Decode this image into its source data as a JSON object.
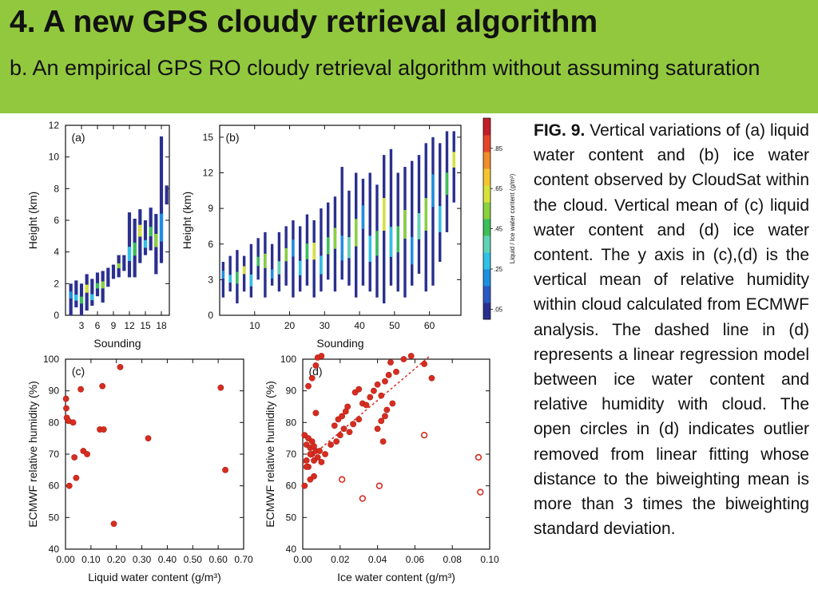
{
  "header": {
    "title": "4. A new GPS cloudy retrieval algorithm",
    "subtitle": "b. An empirical GPS RO cloudy retrieval algorithm without assuming saturation",
    "background": "#92c83e"
  },
  "caption": {
    "label": "FIG. 9.",
    "text": "Vertical variations of (a) liquid water content and (b) ice water content observed by CloudSat within the cloud. Vertical mean of (c) liquid water content and (d) ice water content. The y axis in (c),(d) is the vertical mean of relative humidity within cloud calculated from ECMWF analysis. The dashed line in (d) represents a linear regression model between ice water content and relative humidity with cloud. The open circles in (d) indicates outlier removed from linear fitting whose distance to the biweighting mean is more than 3 times the biweighting standard deviation."
  },
  "colors": {
    "scatter": "#d62d20",
    "bar": "#2a2f8f",
    "header": "#92c83e"
  },
  "colorbar": {
    "label": "Liquid / Ice water content (g/m³)",
    "tick_labels": [
      ".05",
      ".25",
      ".45",
      ".65",
      ".85"
    ],
    "tick_values": [
      0.05,
      0.25,
      0.45,
      0.65,
      0.85
    ],
    "range": [
      0,
      1
    ],
    "colors": [
      "#2a2f8f",
      "#2a59c4",
      "#1e8fe0",
      "#2fc1e6",
      "#5fd3b5",
      "#3cbf5a",
      "#8ad13e",
      "#d8e33a",
      "#f4c530",
      "#f08c2a",
      "#e4452a",
      "#c41e2a"
    ]
  },
  "chart_data": [
    {
      "panel": "(a)",
      "type": "heatmap",
      "xlabel": "Sounding",
      "ylabel": "Height (km)",
      "xlim": [
        0,
        19.5
      ],
      "ylim": [
        0,
        12
      ],
      "xticks": [
        3,
        6,
        9,
        12,
        15,
        18
      ],
      "yticks": [
        0,
        2,
        4,
        6,
        8,
        10,
        12
      ],
      "columns": [
        {
          "x": 1,
          "bottom": 0,
          "top": 2.0
        },
        {
          "x": 2,
          "bottom": 0.5,
          "top": 2.2
        },
        {
          "x": 3,
          "bottom": 0,
          "top": 2.0
        },
        {
          "x": 4,
          "bottom": 0.3,
          "top": 2.6
        },
        {
          "x": 5,
          "bottom": 0.6,
          "top": 2.3
        },
        {
          "x": 6,
          "bottom": 1.2,
          "top": 2.7
        },
        {
          "x": 7,
          "bottom": 0.8,
          "top": 2.8
        },
        {
          "x": 8,
          "bottom": 1.8,
          "top": 3.0
        },
        {
          "x": 9,
          "bottom": 2.3,
          "top": 3.2
        },
        {
          "x": 10,
          "bottom": 2.4,
          "top": 3.8
        },
        {
          "x": 11,
          "bottom": 2.8,
          "top": 3.8
        },
        {
          "x": 12,
          "bottom": 2.4,
          "top": 6.5
        },
        {
          "x": 13,
          "bottom": 2.4,
          "top": 6.1
        },
        {
          "x": 14,
          "bottom": 3.3,
          "top": 6.7
        },
        {
          "x": 15,
          "bottom": 3.8,
          "top": 6.0
        },
        {
          "x": 16,
          "bottom": 4.1,
          "top": 6.8
        },
        {
          "x": 17,
          "bottom": 2.6,
          "top": 6.4
        },
        {
          "x": 18,
          "bottom": 3.3,
          "top": 11.3
        },
        {
          "x": 19,
          "bottom": 7.0,
          "top": 8.2
        }
      ]
    },
    {
      "panel": "(b)",
      "type": "heatmap",
      "xlabel": "Sounding",
      "ylabel": "Height (km)",
      "xlim": [
        0,
        69
      ],
      "ylim": [
        0,
        16
      ],
      "xticks": [
        10,
        20,
        30,
        40,
        50,
        60
      ],
      "yticks": [
        0,
        3,
        6,
        9,
        12,
        15
      ],
      "columns": [
        {
          "x": 1,
          "bottom": 1.5,
          "top": 4.5
        },
        {
          "x": 3,
          "bottom": 2.0,
          "top": 5.0
        },
        {
          "x": 5,
          "bottom": 1.0,
          "top": 5.5
        },
        {
          "x": 7,
          "bottom": 2.0,
          "top": 5.0
        },
        {
          "x": 9,
          "bottom": 1.5,
          "top": 6.0
        },
        {
          "x": 11,
          "bottom": 3.0,
          "top": 6.5
        },
        {
          "x": 13,
          "bottom": 1.5,
          "top": 7.0
        },
        {
          "x": 15,
          "bottom": 2.5,
          "top": 6.0
        },
        {
          "x": 17,
          "bottom": 2.0,
          "top": 7.0
        },
        {
          "x": 19,
          "bottom": 2.5,
          "top": 7.5
        },
        {
          "x": 21,
          "bottom": 1.5,
          "top": 8.0
        },
        {
          "x": 23,
          "bottom": 2.0,
          "top": 7.5
        },
        {
          "x": 25,
          "bottom": 2.5,
          "top": 8.5
        },
        {
          "x": 27,
          "bottom": 1.5,
          "top": 8.0
        },
        {
          "x": 29,
          "bottom": 2.0,
          "top": 9.0
        },
        {
          "x": 31,
          "bottom": 3.0,
          "top": 9.5
        },
        {
          "x": 33,
          "bottom": 2.0,
          "top": 10.0
        },
        {
          "x": 35,
          "bottom": 3.0,
          "top": 12.5
        },
        {
          "x": 37,
          "bottom": 2.5,
          "top": 10.5
        },
        {
          "x": 39,
          "bottom": 1.5,
          "top": 12.0
        },
        {
          "x": 41,
          "bottom": 2.5,
          "top": 11.5
        },
        {
          "x": 43,
          "bottom": 2.0,
          "top": 12.0
        },
        {
          "x": 45,
          "bottom": 1.5,
          "top": 11.0
        },
        {
          "x": 47,
          "bottom": 1.0,
          "top": 13.5
        },
        {
          "x": 49,
          "bottom": 2.5,
          "top": 14.0
        },
        {
          "x": 51,
          "bottom": 2.0,
          "top": 12.0
        },
        {
          "x": 53,
          "bottom": 1.5,
          "top": 12.5
        },
        {
          "x": 55,
          "bottom": 2.5,
          "top": 13.0
        },
        {
          "x": 57,
          "bottom": 3.5,
          "top": 13.5
        },
        {
          "x": 59,
          "bottom": 2.0,
          "top": 14.5
        },
        {
          "x": 61,
          "bottom": 2.5,
          "top": 15.0
        },
        {
          "x": 63,
          "bottom": 4.5,
          "top": 14.5
        },
        {
          "x": 65,
          "bottom": 7.0,
          "top": 15.5
        },
        {
          "x": 67,
          "bottom": 9.5,
          "top": 15.5
        }
      ]
    },
    {
      "panel": "(c)",
      "type": "scatter",
      "xlabel": "Liquid water content (g/m³)",
      "ylabel": "ECMWF relative humidity (%)",
      "xlim": [
        0,
        0.7
      ],
      "ylim": [
        40,
        100
      ],
      "xtick_labels": [
        "0.00",
        "0.10",
        "0.20",
        "0.30",
        "0.40",
        "0.50",
        "0.60",
        "0.70"
      ],
      "xticks": [
        0,
        0.1,
        0.2,
        0.3,
        0.4,
        0.5,
        0.6,
        0.7
      ],
      "yticks": [
        40,
        50,
        60,
        70,
        80,
        90,
        100
      ],
      "points": [
        [
          0.002,
          87.5
        ],
        [
          0.003,
          84.5
        ],
        [
          0.005,
          81.5
        ],
        [
          0.012,
          80.5
        ],
        [
          0.03,
          80.0
        ],
        [
          0.015,
          60.0
        ],
        [
          0.035,
          69.0
        ],
        [
          0.042,
          62.5
        ],
        [
          0.06,
          90.5
        ],
        [
          0.07,
          71.0
        ],
        [
          0.085,
          70.0
        ],
        [
          0.135,
          77.8
        ],
        [
          0.15,
          77.8
        ],
        [
          0.145,
          91.5
        ],
        [
          0.215,
          97.5
        ],
        [
          0.19,
          48.0
        ],
        [
          0.325,
          75.0
        ],
        [
          0.61,
          91.0
        ],
        [
          0.628,
          65.0
        ]
      ]
    },
    {
      "panel": "(d)",
      "type": "scatter",
      "xlabel": "Ice water content (g/m³)",
      "ylabel": "ECMWF relative humidity (%)",
      "xlim": [
        0,
        0.1
      ],
      "ylim": [
        40,
        100
      ],
      "xtick_labels": [
        "0.00",
        "0.02",
        "0.04",
        "0.06",
        "0.08",
        "0.10"
      ],
      "xticks": [
        0,
        0.02,
        0.04,
        0.06,
        0.08,
        0.1
      ],
      "yticks": [
        40,
        50,
        60,
        70,
        80,
        90,
        100
      ],
      "regression_line": {
        "x": [
          0.0,
          0.068
        ],
        "y": [
          67.0,
          101.0
        ]
      },
      "points": [
        [
          0.001,
          76.0
        ],
        [
          0.002,
          73.0
        ],
        [
          0.003,
          75.0
        ],
        [
          0.004,
          72.0
        ],
        [
          0.005,
          70.0
        ],
        [
          0.006,
          68.0
        ],
        [
          0.007,
          71.0
        ],
        [
          0.008,
          69.0
        ],
        [
          0.002,
          68.0
        ],
        [
          0.003,
          66.0
        ],
        [
          0.004,
          70.0
        ],
        [
          0.005,
          74.0
        ],
        [
          0.006,
          72.5
        ],
        [
          0.009,
          71.0
        ],
        [
          0.01,
          67.5
        ],
        [
          0.012,
          70.0
        ],
        [
          0.015,
          73.0
        ],
        [
          0.018,
          74.0
        ],
        [
          0.02,
          76.0
        ],
        [
          0.022,
          78.0
        ],
        [
          0.017,
          79.0
        ],
        [
          0.019,
          81.0
        ],
        [
          0.021,
          82.0
        ],
        [
          0.023,
          83.5
        ],
        [
          0.025,
          77.0
        ],
        [
          0.027,
          79.5
        ],
        [
          0.03,
          81.0
        ],
        [
          0.032,
          86.0
        ],
        [
          0.034,
          85.5
        ],
        [
          0.036,
          88.0
        ],
        [
          0.038,
          90.0
        ],
        [
          0.04,
          92.0
        ],
        [
          0.042,
          88.5
        ],
        [
          0.044,
          93.0
        ],
        [
          0.046,
          95.0
        ],
        [
          0.047,
          99.0
        ],
        [
          0.05,
          96.0
        ],
        [
          0.054,
          100.0
        ],
        [
          0.058,
          101.0
        ],
        [
          0.005,
          94.0
        ],
        [
          0.007,
          98.0
        ],
        [
          0.008,
          100.5
        ],
        [
          0.01,
          101.0
        ],
        [
          0.04,
          78.0
        ],
        [
          0.042,
          80.5
        ],
        [
          0.044,
          82.0
        ],
        [
          0.045,
          84.0
        ],
        [
          0.028,
          89.5
        ],
        [
          0.03,
          90.5
        ],
        [
          0.024,
          85.0
        ],
        [
          0.048,
          86.0
        ],
        [
          0.043,
          74.0
        ],
        [
          0.065,
          98.5
        ],
        [
          0.069,
          94.0
        ],
        [
          0.001,
          60.0
        ],
        [
          0.003,
          91.5
        ],
        [
          0.007,
          83.0
        ],
        [
          0.002,
          66.0
        ],
        [
          0.006,
          63.0
        ],
        [
          0.004,
          62.0
        ]
      ],
      "outliers": [
        [
          0.021,
          62.0
        ],
        [
          0.032,
          56.0
        ],
        [
          0.041,
          60.0
        ],
        [
          0.065,
          76.0
        ],
        [
          0.094,
          69.0
        ],
        [
          0.095,
          58.0
        ]
      ]
    }
  ]
}
